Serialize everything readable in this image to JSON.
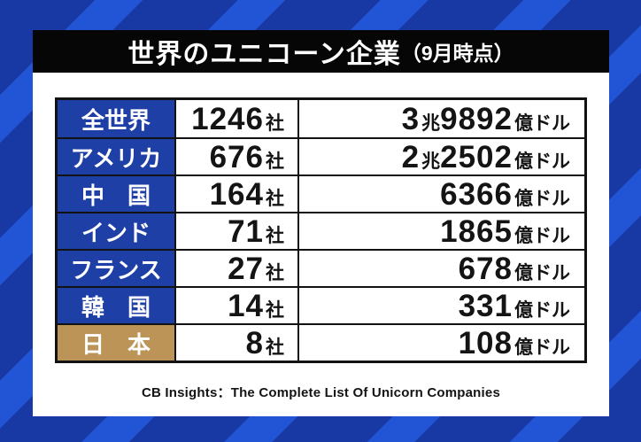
{
  "title": {
    "main": "世界のユニコーン企業",
    "paren": "（9月時点）"
  },
  "source": "CB Insights：The Complete List Of Unicorn Companies",
  "colors": {
    "bg_dark": "#1839a3",
    "bg_light": "#2254d6",
    "title_bg": "#060606",
    "cell_blue": "#1e3fa6",
    "japan_gold": "#bd9457",
    "line": "#121212",
    "ink": "#141414"
  },
  "table": {
    "rows": [
      {
        "country": "全世界",
        "count": "1246",
        "count_unit": "社",
        "highlight": false,
        "value": [
          {
            "t": "3",
            "k": "num"
          },
          {
            "t": "兆",
            "k": "unit"
          },
          {
            "t": "9892",
            "k": "num"
          },
          {
            "t": "億ドル",
            "k": "unit"
          }
        ]
      },
      {
        "country": "アメリカ",
        "count": "676",
        "count_unit": "社",
        "highlight": false,
        "value": [
          {
            "t": "2",
            "k": "num"
          },
          {
            "t": "兆",
            "k": "unit"
          },
          {
            "t": "2502",
            "k": "num"
          },
          {
            "t": "億ドル",
            "k": "unit"
          }
        ]
      },
      {
        "country": "中　国",
        "count": "164",
        "count_unit": "社",
        "highlight": false,
        "value": [
          {
            "t": "6366",
            "k": "num"
          },
          {
            "t": "億ドル",
            "k": "unit"
          }
        ]
      },
      {
        "country": "インド",
        "count": "71",
        "count_unit": "社",
        "highlight": false,
        "value": [
          {
            "t": "1865",
            "k": "num"
          },
          {
            "t": "億ドル",
            "k": "unit"
          }
        ]
      },
      {
        "country": "フランス",
        "count": "27",
        "count_unit": "社",
        "highlight": false,
        "value": [
          {
            "t": "678",
            "k": "num"
          },
          {
            "t": "億ドル",
            "k": "unit"
          }
        ]
      },
      {
        "country": "韓　国",
        "count": "14",
        "count_unit": "社",
        "highlight": false,
        "value": [
          {
            "t": "331",
            "k": "num"
          },
          {
            "t": "億ドル",
            "k": "unit"
          }
        ]
      },
      {
        "country": "日　本",
        "count": "8",
        "count_unit": "社",
        "highlight": true,
        "value": [
          {
            "t": "108",
            "k": "num"
          },
          {
            "t": "億ドル",
            "k": "unit"
          }
        ]
      }
    ]
  },
  "chart_data": {
    "type": "table",
    "title": "世界のユニコーン企業（9月時点）",
    "rows": [
      {
        "region": "全世界",
        "companies": 1246,
        "companies_label": "1246社",
        "valuation_label": "3兆9892億ドル",
        "valuation_oku_usd": 39892
      },
      {
        "region": "アメリカ",
        "companies": 676,
        "companies_label": "676社",
        "valuation_label": "2兆2502億ドル",
        "valuation_oku_usd": 22502
      },
      {
        "region": "中国",
        "companies": 164,
        "companies_label": "164社",
        "valuation_label": "6366億ドル",
        "valuation_oku_usd": 6366
      },
      {
        "region": "インド",
        "companies": 71,
        "companies_label": "71社",
        "valuation_label": "1865億ドル",
        "valuation_oku_usd": 1865
      },
      {
        "region": "フランス",
        "companies": 27,
        "companies_label": "27社",
        "valuation_label": "678億ドル",
        "valuation_oku_usd": 678
      },
      {
        "region": "韓国",
        "companies": 14,
        "companies_label": "14社",
        "valuation_label": "331億ドル",
        "valuation_oku_usd": 331
      },
      {
        "region": "日本",
        "companies": 8,
        "companies_label": "8社",
        "valuation_label": "108億ドル",
        "valuation_oku_usd": 108
      }
    ],
    "highlighted_row": "日本",
    "source": "CB Insights：The Complete List Of Unicorn Companies"
  }
}
